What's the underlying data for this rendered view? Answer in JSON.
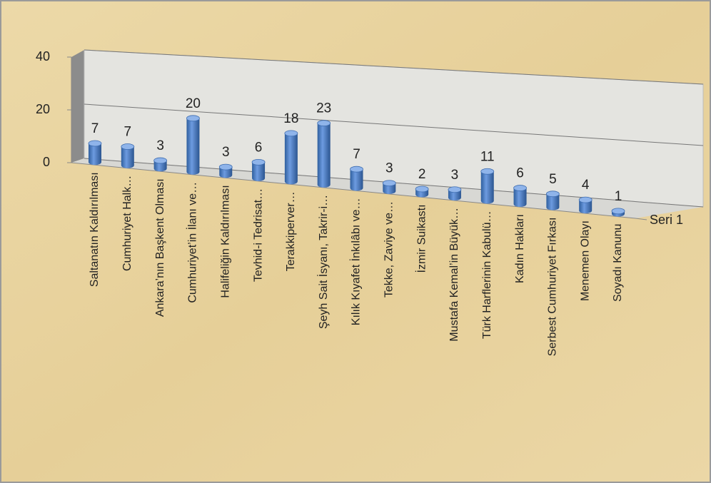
{
  "chart_data": {
    "type": "bar3d",
    "categories": [
      "Saltanatın Kaldırılması",
      "Cumhuriyet Halk…",
      "Ankara’nın Başkent Olması",
      "Cumhuriyet’in İlanı ve…",
      "Halifeliğin Kaldırılması",
      "Tevhid-i Tedrisat…",
      "Terakkiperver…",
      "Şeyh Sait İsyanı, Takrir-i…",
      "Kılık Kıyafet İnkılâbı ve…",
      "Tekke, Zaviye ve…",
      "İzmir Suikastı",
      "Mustafa Kemal’in Büyük…",
      "Türk Harflerinin Kabulü…",
      "Kadın Hakları",
      "Serbest Cumhuriyet Fırkası",
      "Menemen Olayı",
      "Soyadı Kanunu"
    ],
    "series": [
      {
        "name": "Seri 1",
        "color": "#4f81bd",
        "values": [
          7,
          7,
          3,
          20,
          3,
          6,
          18,
          23,
          7,
          3,
          2,
          3,
          11,
          6,
          5,
          4,
          1
        ]
      }
    ],
    "ylim": [
      0,
      40
    ],
    "yticks": [
      0,
      20,
      40
    ],
    "grid": true
  }
}
